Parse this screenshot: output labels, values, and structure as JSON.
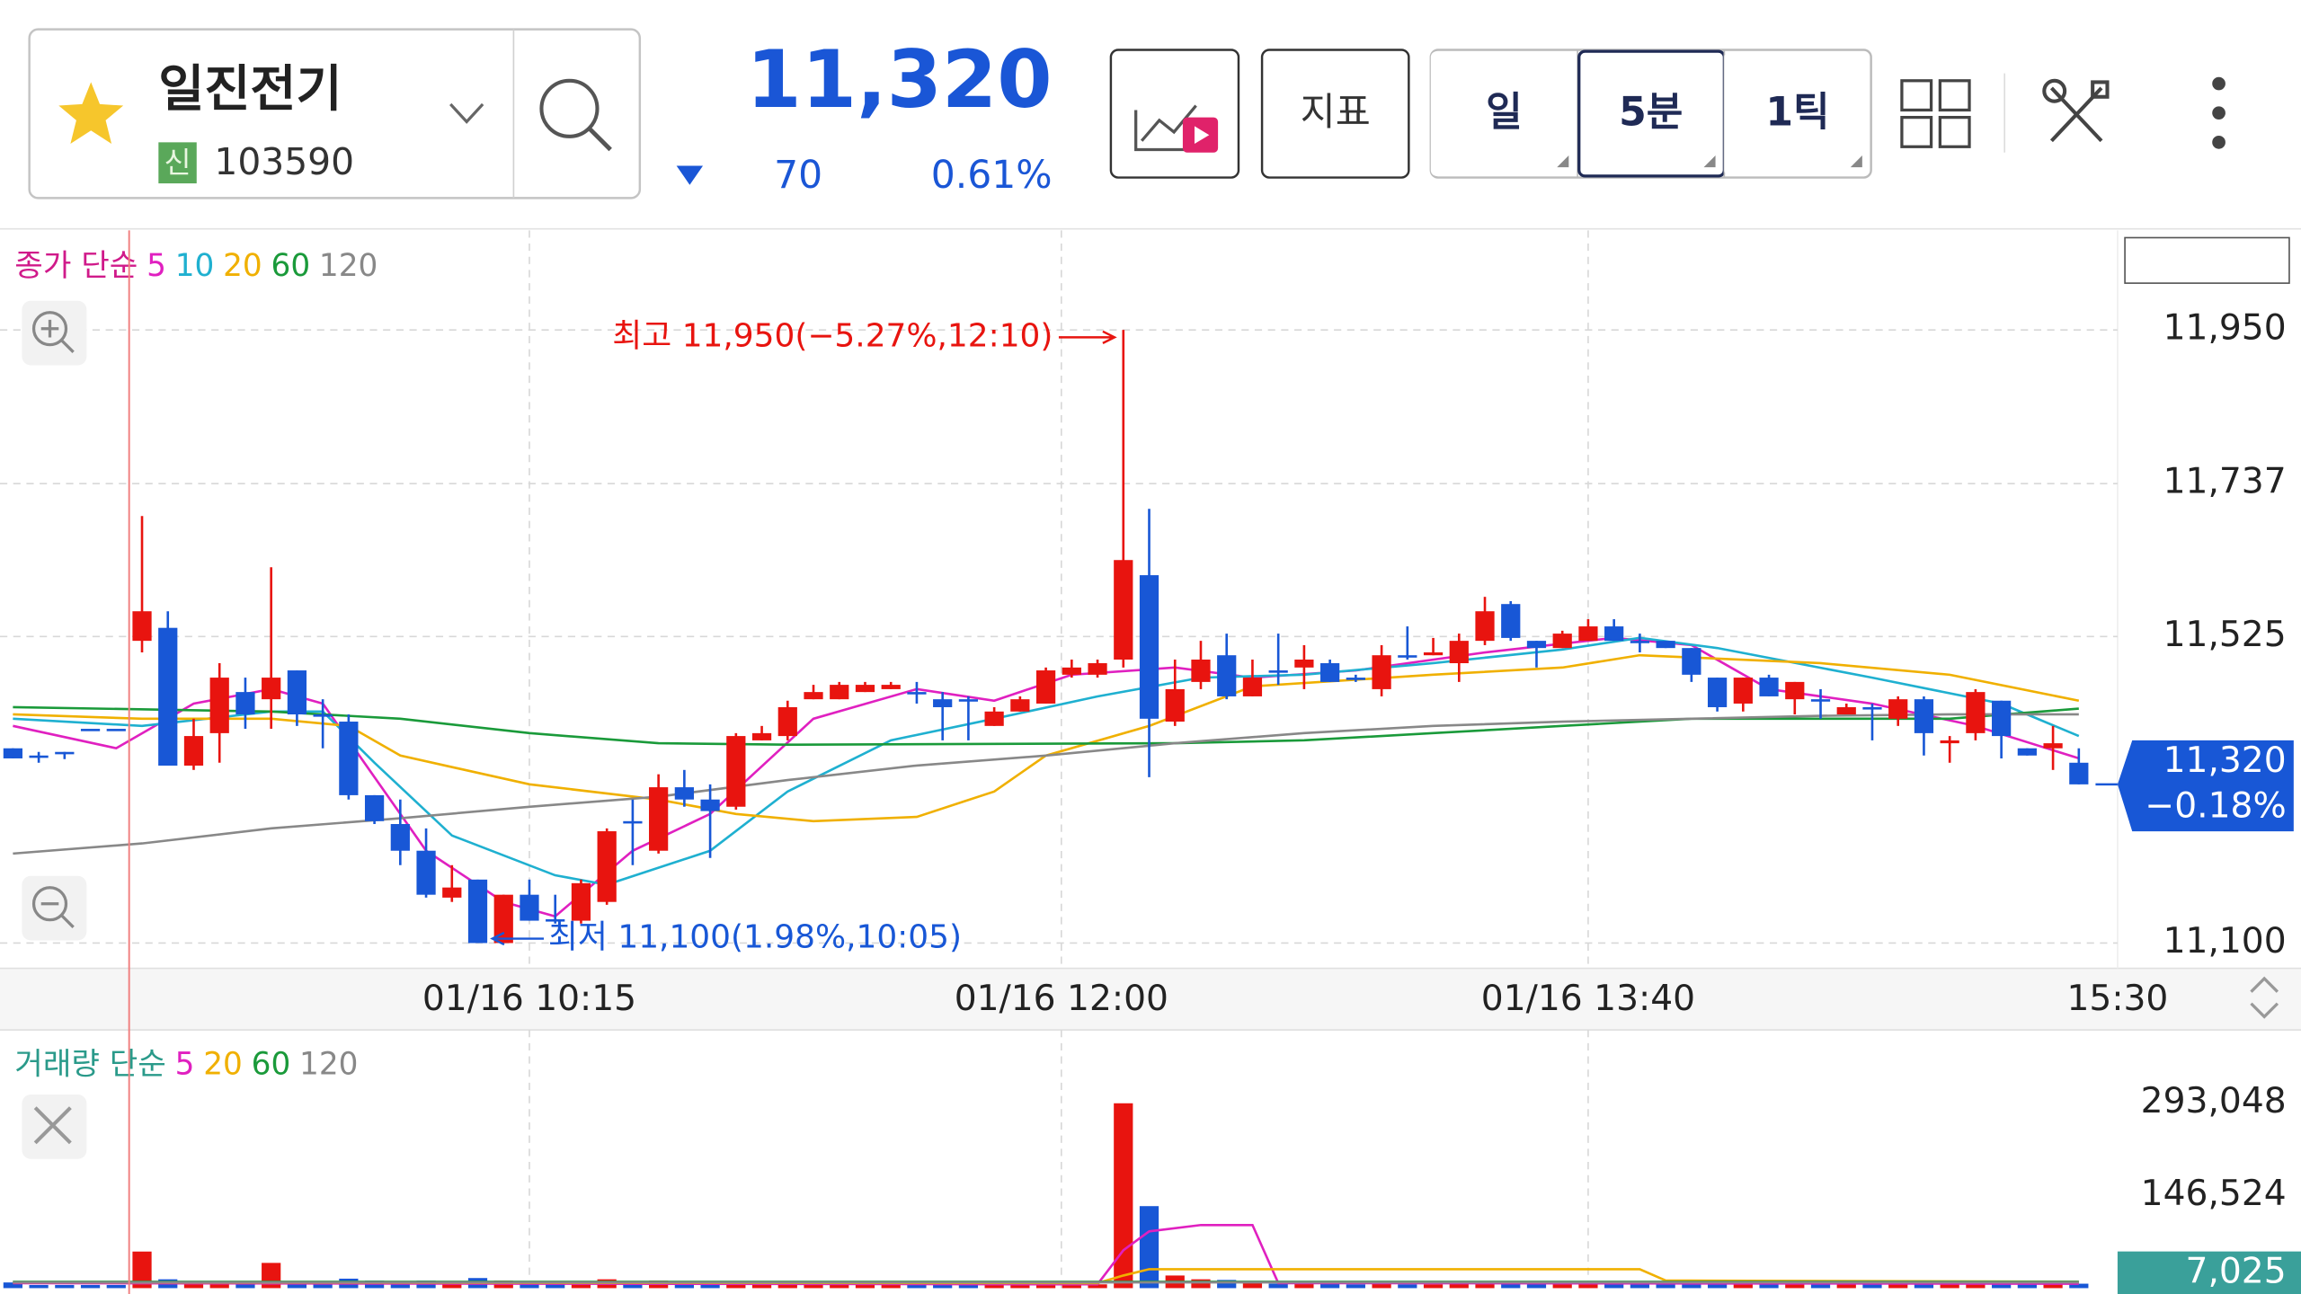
{
  "header": {
    "name": "일진전기",
    "badge": "신",
    "code": "103590",
    "price": "11,320",
    "change": "70",
    "change_pct": "0.61%"
  },
  "toolbar": {
    "indicator": "지표",
    "periods": [
      "일",
      "5분",
      "1틱"
    ],
    "selected": 1
  },
  "chart_data": [
    {
      "type": "candlestick",
      "legend_label": "종가 단순",
      "top_value": 82,
      "xlim": [
        -0.5,
        81.5
      ],
      "xticks": [
        {
          "value": 20,
          "label": "01/16 10:15"
        },
        {
          "value": 40.6,
          "label": "01/16 12:00"
        },
        {
          "value": 61,
          "label": "01/16 13:40"
        },
        {
          "value": 81.5,
          "label": "15:30"
        }
      ],
      "ylim": [
        11065,
        12082
      ],
      "yticks": [
        {
          "value": 11100,
          "label": "11,100"
        },
        {
          "value": 11525,
          "label": "11,525"
        },
        {
          "value": 11737,
          "label": "11,737"
        },
        {
          "value": 11950,
          "label": "11,950"
        }
      ],
      "grid": true,
      "up_color": "#e8140f",
      "down_color": "#1857d6",
      "open": [
        11370,
        11360,
        11365,
        11397,
        11397,
        11519,
        11537,
        11346,
        11391,
        11448,
        11438,
        11478,
        11417,
        11407,
        11305,
        11265,
        11228,
        11163,
        11188,
        11100,
        11167,
        11133,
        11131,
        11157,
        11269,
        11228,
        11316,
        11299,
        11289,
        11381,
        11387,
        11438,
        11438,
        11448,
        11452,
        11448,
        11438,
        11438,
        11401,
        11421,
        11432,
        11472,
        11472,
        11493,
        11610,
        11407,
        11462,
        11499,
        11442,
        11478,
        11482,
        11488,
        11468,
        11452,
        11499,
        11499,
        11488,
        11519,
        11570,
        11519,
        11509,
        11519,
        11539,
        11519,
        11519,
        11509,
        11468,
        11432,
        11468,
        11438,
        11438,
        11417,
        11427,
        11411,
        11438,
        11377,
        11391,
        11436,
        11370,
        11370,
        11350
      ],
      "high": [
        11370,
        11365,
        11365,
        11397,
        11397,
        11692,
        11560,
        11411,
        11488,
        11468,
        11621,
        11478,
        11438,
        11417,
        11305,
        11299,
        11259,
        11208,
        11188,
        11167,
        11188,
        11167,
        11188,
        11259,
        11299,
        11334,
        11340,
        11320,
        11391,
        11401,
        11436,
        11458,
        11462,
        11462,
        11462,
        11462,
        11448,
        11442,
        11427,
        11442,
        11482,
        11493,
        11493,
        11950,
        11702,
        11493,
        11519,
        11529,
        11493,
        11529,
        11513,
        11493,
        11472,
        11513,
        11539,
        11523,
        11529,
        11580,
        11574,
        11519,
        11533,
        11549,
        11549,
        11529,
        11519,
        11509,
        11468,
        11468,
        11472,
        11462,
        11452,
        11432,
        11432,
        11442,
        11442,
        11387,
        11452,
        11436,
        11370,
        11401,
        11370
      ],
      "low": [
        11356,
        11350,
        11355,
        11397,
        11397,
        11503,
        11346,
        11340,
        11350,
        11397,
        11397,
        11401,
        11370,
        11299,
        11265,
        11208,
        11163,
        11157,
        11100,
        11100,
        11131,
        11127,
        11127,
        11153,
        11208,
        11224,
        11289,
        11218,
        11285,
        11381,
        11381,
        11438,
        11438,
        11448,
        11452,
        11432,
        11381,
        11381,
        11401,
        11421,
        11432,
        11468,
        11468,
        11482,
        11330,
        11401,
        11452,
        11438,
        11442,
        11458,
        11452,
        11462,
        11462,
        11442,
        11493,
        11499,
        11462,
        11513,
        11519,
        11482,
        11509,
        11519,
        11519,
        11503,
        11509,
        11462,
        11421,
        11421,
        11442,
        11417,
        11411,
        11417,
        11381,
        11401,
        11360,
        11350,
        11381,
        11356,
        11360,
        11340,
        11320
      ],
      "close": [
        11356,
        11360,
        11365,
        11397,
        11397,
        11560,
        11346,
        11387,
        11468,
        11417,
        11468,
        11417,
        11417,
        11305,
        11269,
        11228,
        11167,
        11177,
        11100,
        11167,
        11131,
        11133,
        11183,
        11255,
        11269,
        11316,
        11299,
        11283,
        11387,
        11391,
        11427,
        11448,
        11458,
        11458,
        11458,
        11448,
        11427,
        11438,
        11421,
        11438,
        11478,
        11482,
        11488,
        11631,
        11411,
        11452,
        11493,
        11442,
        11468,
        11478,
        11493,
        11462,
        11468,
        11499,
        11499,
        11503,
        11519,
        11560,
        11523,
        11509,
        11529,
        11539,
        11519,
        11519,
        11509,
        11472,
        11427,
        11468,
        11442,
        11462,
        11438,
        11427,
        11427,
        11438,
        11391,
        11381,
        11448,
        11387,
        11360,
        11377,
        11320
      ],
      "series": [
        {
          "name": "5",
          "color": "#e020c0",
          "x": [
            0,
            4,
            7,
            10,
            12,
            14,
            16,
            19,
            21,
            24,
            27,
            31,
            35,
            38,
            41,
            45,
            48,
            52,
            57,
            62,
            65,
            68,
            72,
            76,
            80
          ],
          "values": [
            11401,
            11370,
            11432,
            11452,
            11432,
            11330,
            11228,
            11157,
            11137,
            11228,
            11279,
            11411,
            11452,
            11436,
            11472,
            11482,
            11468,
            11478,
            11503,
            11523,
            11513,
            11452,
            11432,
            11401,
            11356
          ]
        },
        {
          "name": "10",
          "color": "#1fb0d0",
          "x": [
            0,
            5,
            10,
            12,
            14,
            17,
            21,
            23,
            27,
            30,
            34,
            38,
            42,
            46,
            50,
            55,
            60,
            63,
            66,
            72,
            77,
            80
          ],
          "values": [
            11411,
            11401,
            11421,
            11421,
            11350,
            11249,
            11194,
            11181,
            11228,
            11310,
            11381,
            11411,
            11442,
            11468,
            11472,
            11488,
            11507,
            11523,
            11509,
            11468,
            11432,
            11387
          ]
        },
        {
          "name": "20",
          "color": "#f0b000",
          "x": [
            0,
            5,
            10,
            13,
            15,
            20,
            25,
            28,
            31,
            35,
            38,
            40,
            44,
            48,
            55,
            60,
            63,
            70,
            75,
            80
          ],
          "values": [
            11417,
            11411,
            11411,
            11401,
            11360,
            11320,
            11299,
            11279,
            11269,
            11275,
            11310,
            11360,
            11401,
            11456,
            11472,
            11482,
            11499,
            11488,
            11472,
            11436
          ]
        },
        {
          "name": "60",
          "color": "#1a9a3a",
          "x": [
            0,
            10,
            15,
            20,
            25,
            30,
            45,
            50,
            55,
            60,
            65,
            70,
            75,
            80
          ],
          "values": [
            11427,
            11421,
            11411,
            11391,
            11377,
            11375,
            11377,
            11381,
            11391,
            11401,
            11411,
            11411,
            11411,
            11425
          ]
        },
        {
          "name": "120",
          "color": "#888888",
          "x": [
            0,
            5,
            10,
            15,
            20,
            25,
            30,
            35,
            40,
            45,
            50,
            55,
            60,
            65,
            70,
            75,
            80
          ],
          "values": [
            11224,
            11238,
            11259,
            11273,
            11289,
            11303,
            11326,
            11346,
            11360,
            11377,
            11391,
            11401,
            11407,
            11411,
            11415,
            11417,
            11417
          ]
        }
      ],
      "high_label": "최고 11,950(−5.27%,12:10)",
      "low_label": "최저 11,100(1.98%,10:05)",
      "last_label": "11,320",
      "last_change": "−0.18%"
    },
    {
      "type": "bar",
      "legend_label": "거래량 단순",
      "xlim": [
        -0.5,
        81.5
      ],
      "ylim": [
        0,
        402370
      ],
      "yticks": [
        {
          "value": 146524,
          "label": "146,524"
        },
        {
          "value": 293048,
          "label": "293,048"
        }
      ],
      "values": [
        9000,
        5000,
        5000,
        5000,
        5000,
        58000,
        14000,
        9000,
        10000,
        8000,
        40000,
        9000,
        7000,
        15000,
        12000,
        11000,
        12000,
        9000,
        16000,
        12000,
        9000,
        6000,
        9000,
        14000,
        8000,
        12000,
        9000,
        10000,
        11000,
        7000,
        9000,
        7000,
        6000,
        5000,
        5000,
        6000,
        7000,
        6000,
        6000,
        6000,
        9000,
        6000,
        6000,
        293048,
        130000,
        20000,
        14000,
        13000,
        10000,
        7000,
        7000,
        8000,
        6000,
        9000,
        6000,
        6000,
        9000,
        10000,
        9000,
        7000,
        8000,
        8000,
        7000,
        6000,
        6000,
        8000,
        9000,
        8000,
        7000,
        7000,
        6000,
        6000,
        7000,
        8000,
        9000,
        7000,
        9000,
        8000,
        6000,
        6000,
        7025
      ],
      "series": [
        {
          "name": "5",
          "color": "#e020c0",
          "x": [
            0,
            42,
            43,
            44,
            46,
            48,
            49,
            80
          ],
          "values": [
            8000,
            6000,
            60000,
            90000,
            100000,
            100000,
            8000,
            7000
          ]
        },
        {
          "name": "20",
          "color": "#f0b000",
          "x": [
            0,
            42,
            43,
            44,
            63,
            64,
            80
          ],
          "values": [
            9000,
            8000,
            20000,
            30000,
            30000,
            12000,
            10000
          ]
        },
        {
          "name": "60",
          "color": "#1a9a3a",
          "x": [
            0,
            80
          ],
          "values": [
            10000,
            10000
          ]
        },
        {
          "name": "120",
          "color": "#888888",
          "x": [
            0,
            80
          ],
          "values": [
            9000,
            9000
          ]
        }
      ],
      "last_label": "7,025"
    }
  ]
}
